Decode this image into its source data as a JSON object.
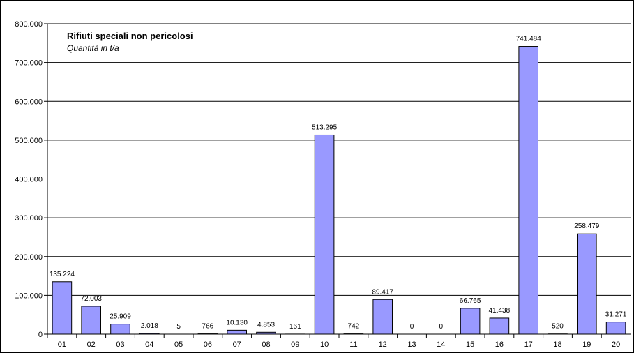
{
  "chart_data": {
    "type": "bar",
    "title": "Rifiuti speciali non pericolosi",
    "subtitle": "Quantità in t/a",
    "xlabel": "",
    "ylabel": "",
    "ylim": [
      0,
      800000
    ],
    "y_ticks": [
      0,
      100000,
      200000,
      300000,
      400000,
      500000,
      600000,
      700000,
      800000
    ],
    "y_tick_labels": [
      "0",
      "100.000",
      "200.000",
      "300.000",
      "400.000",
      "500.000",
      "600.000",
      "700.000",
      "800.000"
    ],
    "grid": true,
    "bar_color": "#9999ff",
    "categories": [
      "01",
      "02",
      "03",
      "04",
      "05",
      "06",
      "07",
      "08",
      "09",
      "10",
      "11",
      "12",
      "13",
      "14",
      "15",
      "16",
      "17",
      "18",
      "19",
      "20"
    ],
    "values": [
      135224,
      72003,
      25909,
      2018,
      5,
      766,
      10130,
      4853,
      161,
      513295,
      742,
      89417,
      0,
      0,
      66765,
      41438,
      741484,
      520,
      258479,
      31271
    ],
    "value_labels": [
      "135.224",
      "72.003",
      "25.909",
      "2.018",
      "5",
      "766",
      "10.130",
      "4.853",
      "161",
      "513.295",
      "742",
      "89.417",
      "0",
      "0",
      "66.765",
      "41.438",
      "741.484",
      "520",
      "258.479",
      "31.271"
    ]
  }
}
